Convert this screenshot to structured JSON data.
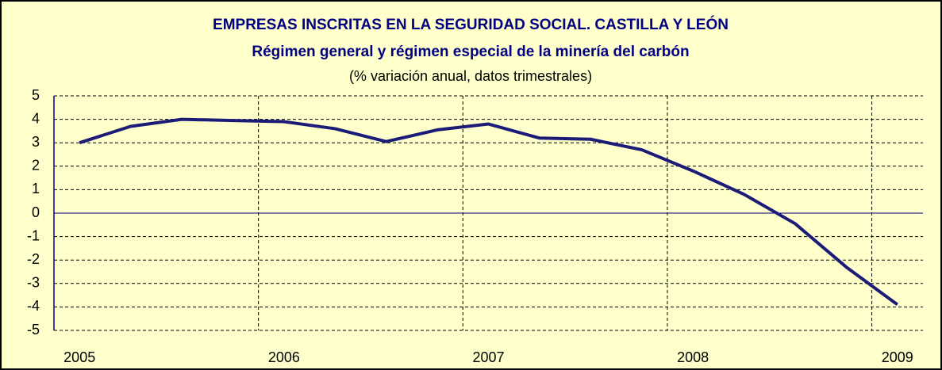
{
  "chart_data": {
    "type": "line",
    "title": "EMPRESAS INSCRITAS EN LA SEGURIDAD SOCIAL. CASTILLA Y  LEÓN",
    "subtitle": "Régimen general y régimen especial de la minería del carbón",
    "note": "(% variación anual, datos trimestrales)",
    "categories": [
      "2005",
      null,
      null,
      null,
      "2006",
      null,
      null,
      null,
      "2007",
      null,
      null,
      null,
      "2008",
      null,
      null,
      null,
      "2009"
    ],
    "series": [
      {
        "color": "#1c1c78",
        "values": [
          3.0,
          3.7,
          4.0,
          3.95,
          3.9,
          3.6,
          3.05,
          3.55,
          3.8,
          3.2,
          3.15,
          2.7,
          1.8,
          0.8,
          -0.45,
          -2.3,
          -3.9
        ]
      }
    ],
    "ylim": [
      -5,
      5
    ],
    "yticks": [
      -5,
      -4,
      -3,
      -2,
      -1,
      0,
      1,
      2,
      3,
      4,
      5
    ],
    "grid": true
  }
}
